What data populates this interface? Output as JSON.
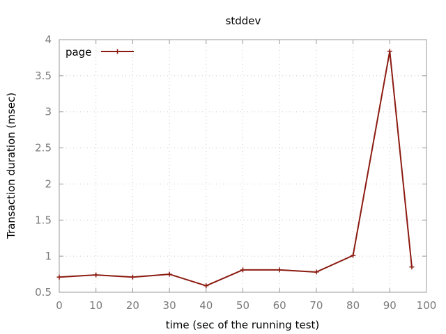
{
  "chart_data": {
    "type": "line",
    "title": "stddev",
    "xlabel": "time (sec of the running test)",
    "ylabel": "Transaction duration (msec)",
    "xlim": [
      0,
      100
    ],
    "ylim": [
      0.5,
      4
    ],
    "xticks": [
      "0",
      "10",
      "20",
      "30",
      "40",
      "50",
      "60",
      "70",
      "80",
      "90",
      "100"
    ],
    "yticks": [
      "0.5",
      "1",
      "1.5",
      "2",
      "2.5",
      "3",
      "3.5",
      "4"
    ],
    "grid": true,
    "legend_position": "top-left",
    "series": [
      {
        "name": "page",
        "color": "#8b1a10",
        "x": [
          0,
          10,
          20,
          30,
          40,
          50,
          60,
          70,
          80,
          90,
          96
        ],
        "y": [
          0.71,
          0.74,
          0.71,
          0.75,
          0.59,
          0.81,
          0.81,
          0.78,
          1.01,
          3.84,
          0.85
        ]
      }
    ]
  }
}
